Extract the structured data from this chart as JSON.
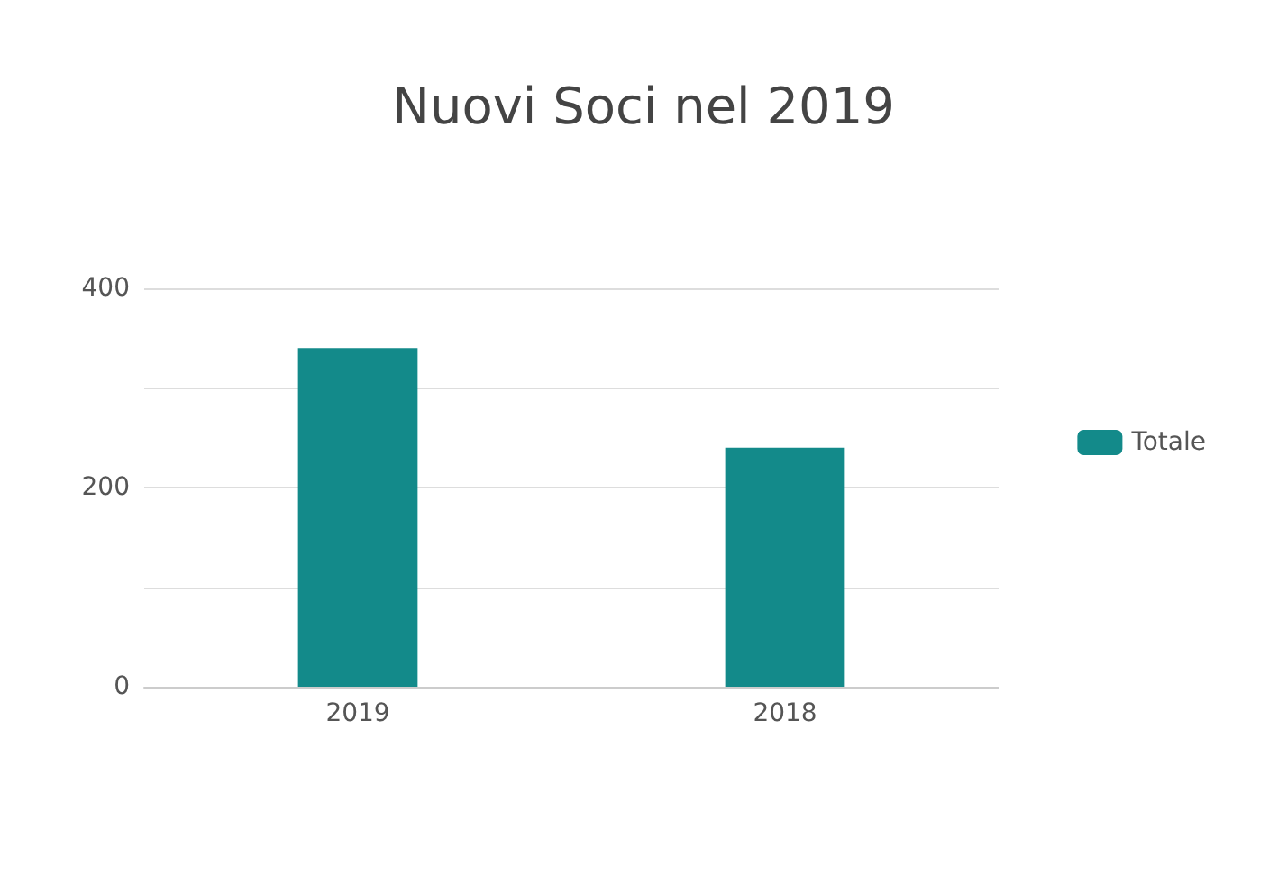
{
  "chart_data": {
    "type": "bar",
    "title": "Nuovi Soci nel 2019",
    "categories": [
      "2019",
      "2018"
    ],
    "series": [
      {
        "name": "Totale",
        "color": "#138a8a",
        "values": [
          340,
          240
        ]
      }
    ],
    "ylim": [
      0,
      400
    ],
    "yticks": [
      0,
      200,
      400
    ],
    "grid": "y",
    "legend": "right"
  }
}
